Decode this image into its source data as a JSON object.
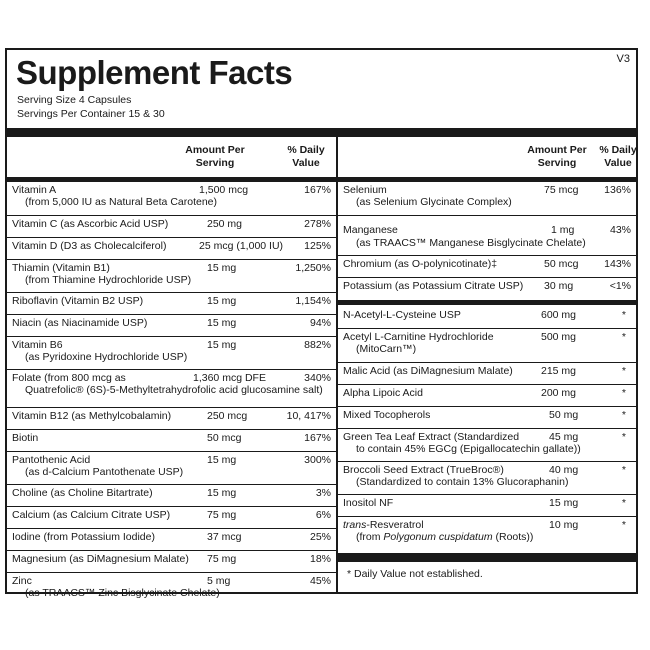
{
  "version": "V3",
  "title": "Supplement Facts",
  "serving_size": "Serving Size  4 Capsules",
  "servings_per_container": "Servings Per Container  15 & 30",
  "headers": {
    "amount": "Amount Per Serving",
    "dv": "% Daily Value"
  },
  "left_rows": [
    {
      "name": "Vitamin A",
      "sub": "(from 5,000 IU as Natural Beta Carotene)",
      "amount": "1,500 mcg",
      "dv": "167%"
    },
    {
      "name": "Vitamin C (as Ascorbic Acid USP)",
      "sub": "",
      "amount": "250 mg",
      "dv": "278%"
    },
    {
      "name": "Vitamin D (D3 as Cholecalciferol)",
      "sub": "",
      "amount": "25 mcg (1,000 IU)",
      "dv": "125%"
    },
    {
      "name": "Thiamin (Vitamin B1)",
      "sub": "(from Thiamine Hydrochloride USP)",
      "amount": "15 mg",
      "dv": "1,250%"
    },
    {
      "name": "Riboflavin (Vitamin B2 USP)",
      "sub": "",
      "amount": "15 mg",
      "dv": "1,154%"
    },
    {
      "name": "Niacin (as Niacinamide USP)",
      "sub": "",
      "amount": "15 mg",
      "dv": "94%"
    },
    {
      "name": "Vitamin B6",
      "sub": "(as Pyridoxine Hydrochloride USP)",
      "amount": "15 mg",
      "dv": "882%"
    },
    {
      "name": "Folate (from 800 mcg as",
      "sub": "Quatrefolic® (6S)-5-Methyltetrahydrofolic acid glucosamine salt)",
      "amount": "1,360 mcg DFE",
      "dv": "340%"
    },
    {
      "name": "Vitamin B12 (as Methylcobalamin)",
      "sub": "",
      "amount": "250 mcg",
      "dv": "10, 417%"
    },
    {
      "name": "Biotin",
      "sub": "",
      "amount": "50 mcg",
      "dv": "167%"
    },
    {
      "name": "Pantothenic Acid",
      "sub": "(as d-Calcium Pantothenate USP)",
      "amount": "15 mg",
      "dv": "300%"
    },
    {
      "name": "Choline (as Choline Bitartrate)",
      "sub": "",
      "amount": "15 mg",
      "dv": "3%"
    },
    {
      "name": "Calcium (as Calcium Citrate USP)",
      "sub": "",
      "amount": "75 mg",
      "dv": "6%"
    },
    {
      "name": "Iodine (from Potassium Iodide)",
      "sub": "",
      "amount": "37 mcg",
      "dv": "25%"
    },
    {
      "name": "Magnesium (as DiMagnesium Malate)",
      "sub": "",
      "amount": "75 mg",
      "dv": "18%"
    },
    {
      "name": "Zinc",
      "sub": "(as TRAACS™ Zinc Bisglycinate Chelate)",
      "amount": "5 mg",
      "dv": "45%"
    }
  ],
  "right_rows_a": [
    {
      "name": "Selenium",
      "sub": "(as Selenium Glycinate Complex)",
      "amount": "75 mcg",
      "dv": "136%"
    },
    {
      "name": "Manganese",
      "sub": "(as TRAACS™ Manganese Bisglycinate Chelate)",
      "amount": "1 mg",
      "dv": "43%"
    },
    {
      "name": "Chromium (as O-polynicotinate)‡",
      "sub": "",
      "amount": "50 mcg",
      "dv": "143%"
    },
    {
      "name": "Potassium (as Potassium Citrate USP)",
      "sub": "",
      "amount": "30 mg",
      "dv": "<1%"
    }
  ],
  "right_rows_b": [
    {
      "name": "N-Acetyl-L-Cysteine USP",
      "sub": "",
      "amount": "600 mg",
      "dv": "*"
    },
    {
      "name": "Acetyl L-Carnitine Hydrochloride",
      "sub": "(MitoCarn™)",
      "amount": "500 mg",
      "dv": "*"
    },
    {
      "name": "Malic Acid (as DiMagnesium Malate)",
      "sub": "",
      "amount": "215 mg",
      "dv": "*"
    },
    {
      "name": "Alpha Lipoic Acid",
      "sub": "",
      "amount": "200 mg",
      "dv": "*"
    },
    {
      "name": "Mixed Tocopherols",
      "sub": "",
      "amount": "50 mg",
      "dv": "*"
    },
    {
      "name": "Green Tea Leaf Extract (Standardized",
      "sub": "to contain 45% EGCg (Epigallocatechin gallate))",
      "amount": "45 mg",
      "dv": "*"
    },
    {
      "name": "Broccoli Seed Extract (TrueBroc®)",
      "sub": "(Standardized to contain 13% Glucoraphanin)",
      "amount": "40 mg",
      "dv": "*"
    },
    {
      "name": "Inositol NF",
      "sub": "",
      "amount": "15 mg",
      "dv": "*"
    }
  ],
  "resveratrol": {
    "name_italic": "trans",
    "name_rest": "-Resveratrol",
    "sub_prefix": "(from ",
    "sub_italic": "Polygonum cuspidatum",
    "sub_suffix": " (Roots))",
    "amount": "10 mg",
    "dv": "*"
  },
  "footnote": "*  Daily Value not established."
}
